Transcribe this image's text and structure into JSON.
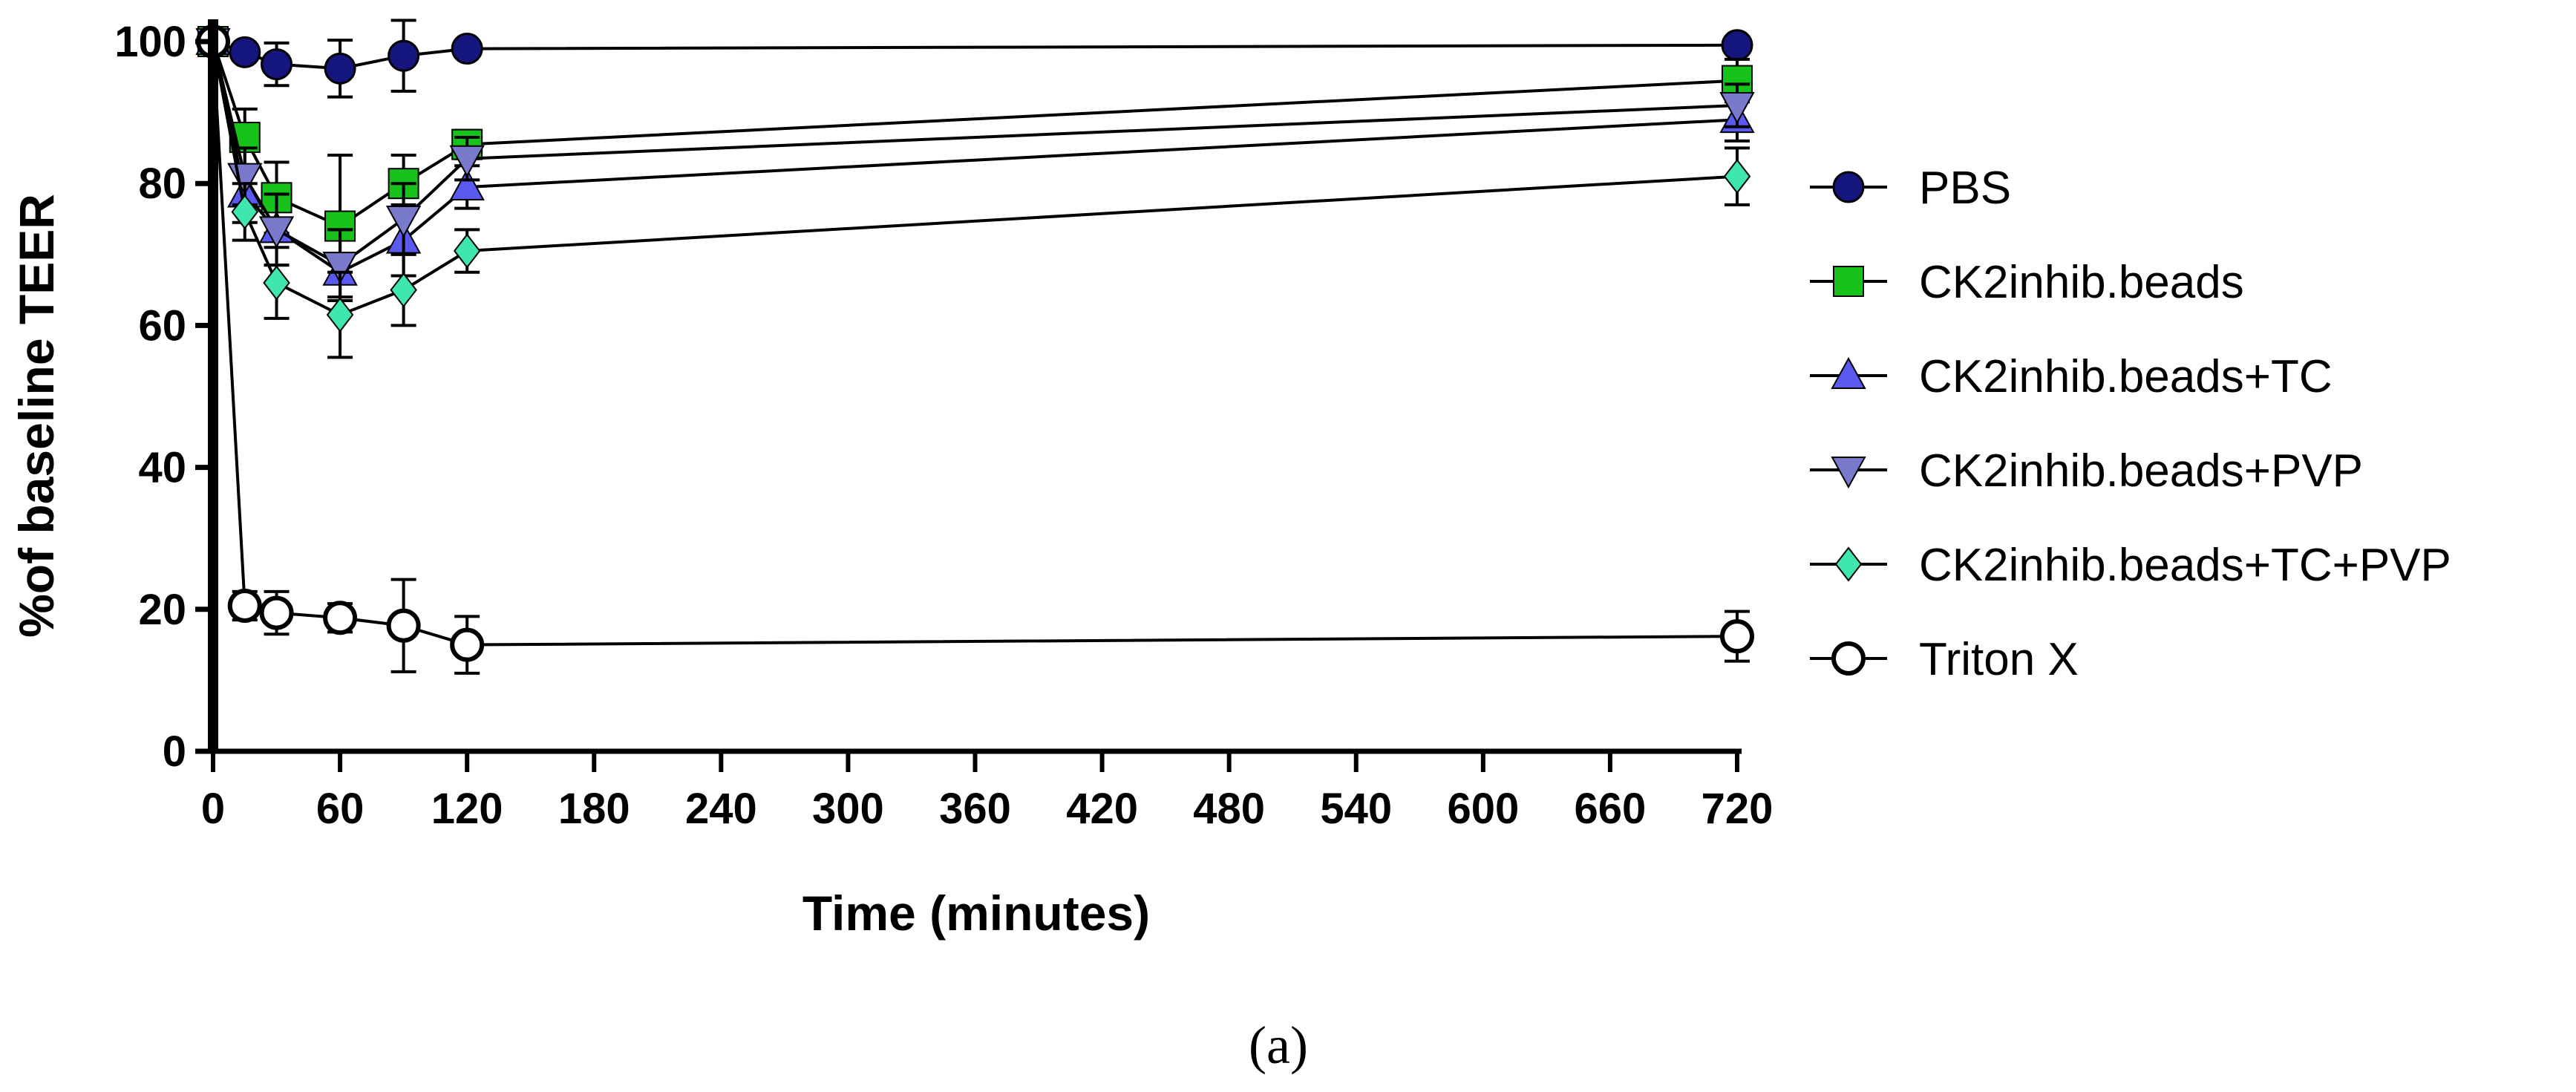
{
  "chart_data": {
    "type": "line",
    "title": "",
    "xlabel": "Time (minutes)",
    "ylabel": "%of baseline TEER",
    "xlim": [
      0,
      720
    ],
    "ylim": [
      0,
      100
    ],
    "xticks": [
      0,
      60,
      120,
      180,
      240,
      300,
      360,
      420,
      480,
      540,
      600,
      660,
      720
    ],
    "yticks": [
      0,
      20,
      40,
      60,
      80,
      100
    ],
    "grid": false,
    "legend_position": "right",
    "x": [
      0,
      15,
      30,
      60,
      90,
      120,
      720
    ],
    "series": [
      {
        "name": "PBS",
        "marker": "circle",
        "color": "#14167d",
        "values": [
          100,
          98.5,
          96.8,
          96.2,
          98,
          99,
          99.5
        ],
        "errors": [
          0.5,
          1,
          3,
          4,
          5,
          1,
          0.5
        ]
      },
      {
        "name": "CK2inhib.beads",
        "marker": "square",
        "color": "#17c21a",
        "values": [
          100,
          86.5,
          78,
          74,
          80,
          85.5,
          94.5
        ],
        "errors": [
          0.5,
          4,
          5,
          10,
          4,
          2,
          3
        ]
      },
      {
        "name": "CK2inhib.beads+TC",
        "marker": "triangle-up",
        "color": "#5a5af0",
        "values": [
          100,
          78.5,
          73.5,
          67.5,
          72,
          79.5,
          89
        ],
        "errors": [
          0.5,
          4,
          5,
          6,
          5,
          3,
          3
        ]
      },
      {
        "name": "CK2inhib.beads+PVP",
        "marker": "triangle-down",
        "color": "#7a7acc",
        "values": [
          100,
          81,
          73.5,
          68.5,
          75,
          83.5,
          91
        ],
        "errors": [
          0.5,
          4,
          5,
          5,
          5,
          3,
          3
        ]
      },
      {
        "name": "CK2inhib.beads+TC+PVP",
        "marker": "diamond",
        "color": "#3fe6b0",
        "values": [
          100,
          76,
          66,
          61.5,
          65,
          70.5,
          81
        ],
        "errors": [
          0.5,
          4,
          5,
          6,
          5,
          3,
          4
        ]
      },
      {
        "name": "Triton X",
        "marker": "open-circle",
        "color": "#000000",
        "values": [
          100,
          20.5,
          19.5,
          18.8,
          17.7,
          15,
          16.2
        ],
        "errors": [
          0.5,
          2,
          3,
          2,
          6.5,
          4,
          3.5
        ]
      }
    ]
  },
  "caption": "(a)"
}
